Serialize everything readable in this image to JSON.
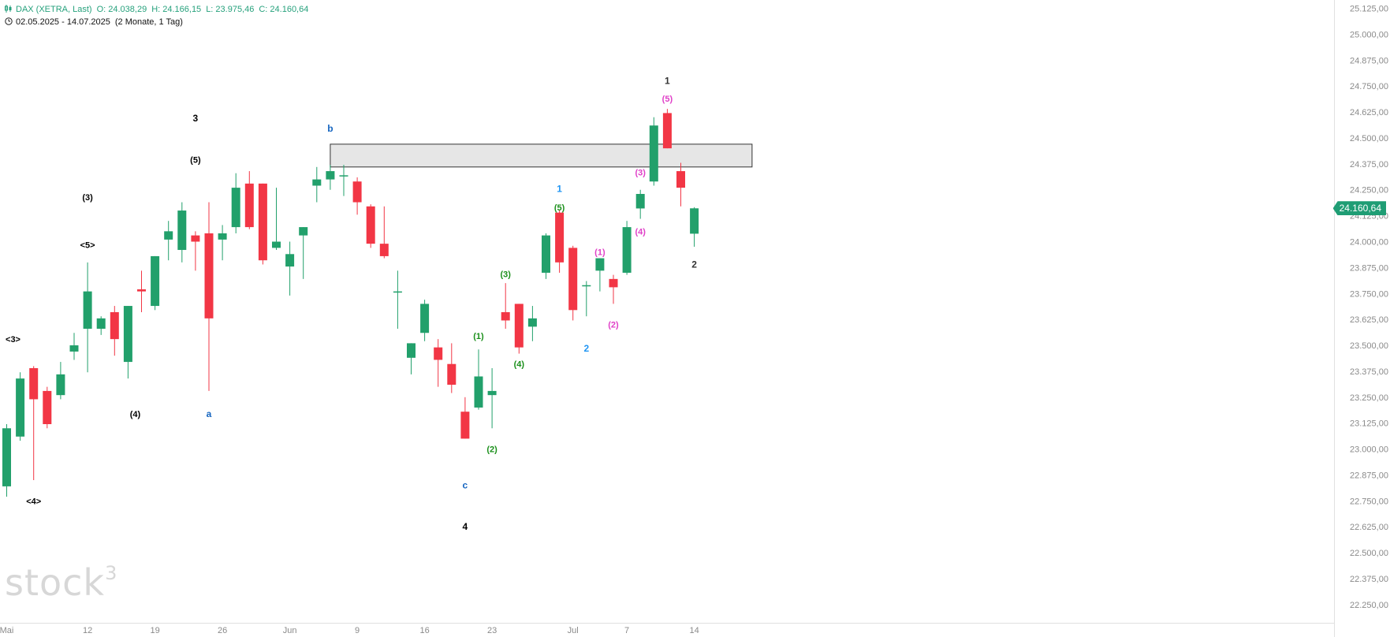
{
  "header": {
    "symbol": "DAX (XETRA, Last)",
    "open": "O: 24.038,29",
    "high": "H: 24.166,15",
    "low": "L: 23.975,46",
    "close": "C: 24.160,64",
    "range": "02.05.2025 - 14.07.2025",
    "period": "(2 Monate, 1 Tag)"
  },
  "watermark": {
    "text": "stock",
    "sup": "3"
  },
  "price_tag": {
    "label": "24.160,64",
    "color": "#1f9d74"
  },
  "colors": {
    "up": "#22a06b",
    "down": "#f23645",
    "axis_text": "#8a8a8a",
    "grid_line": "#e6e6e6"
  },
  "chart_data": {
    "type": "candlestick",
    "y_axis": {
      "ylim": [
        22200,
        25150
      ],
      "ticks": [
        22250,
        22375,
        22500,
        22625,
        22750,
        22875,
        23000,
        23125,
        23250,
        23375,
        23500,
        23625,
        23750,
        23875,
        24000,
        24125,
        24250,
        24375,
        24500,
        24625,
        24750,
        24875,
        25000,
        25125
      ],
      "tick_labels": [
        "22.250,00",
        "22.375,00",
        "22.500,00",
        "22.625,00",
        "22.750,00",
        "22.875,00",
        "23.000,00",
        "23.125,00",
        "23.250,00",
        "23.375,00",
        "23.500,00",
        "23.625,00",
        "23.750,00",
        "23.875,00",
        "24.000,00",
        "24.125,00",
        "24.250,00",
        "24.375,00",
        "24.500,00",
        "24.625,00",
        "24.750,00",
        "24.875,00",
        "25.000,00",
        "25.125,00"
      ]
    },
    "x_axis": {
      "labels": [
        {
          "text": "Mai",
          "date": "2025-05-02"
        },
        {
          "text": "12",
          "date": "2025-05-12"
        },
        {
          "text": "19",
          "date": "2025-05-19"
        },
        {
          "text": "26",
          "date": "2025-05-26"
        },
        {
          "text": "Jun",
          "date": "2025-06-02"
        },
        {
          "text": "9",
          "date": "2025-06-09"
        },
        {
          "text": "16",
          "date": "2025-06-16"
        },
        {
          "text": "23",
          "date": "2025-06-23"
        },
        {
          "text": "Jul",
          "date": "2025-07-01"
        },
        {
          "text": "7",
          "date": "2025-07-07"
        },
        {
          "text": "14",
          "date": "2025-07-14"
        }
      ]
    },
    "candles": [
      {
        "date": "2025-05-02",
        "o": 22820,
        "h": 23120,
        "l": 22770,
        "c": 23100
      },
      {
        "date": "2025-05-05",
        "o": 23060,
        "h": 23370,
        "l": 23040,
        "c": 23340
      },
      {
        "date": "2025-05-06",
        "o": 23390,
        "h": 23400,
        "l": 22850,
        "c": 23240
      },
      {
        "date": "2025-05-07",
        "o": 23280,
        "h": 23300,
        "l": 23100,
        "c": 23120
      },
      {
        "date": "2025-05-08",
        "o": 23260,
        "h": 23420,
        "l": 23240,
        "c": 23360
      },
      {
        "date": "2025-05-09",
        "o": 23470,
        "h": 23560,
        "l": 23430,
        "c": 23500
      },
      {
        "date": "2025-05-12",
        "o": 23580,
        "h": 23900,
        "l": 23370,
        "c": 23760
      },
      {
        "date": "2025-05-13",
        "o": 23580,
        "h": 23640,
        "l": 23550,
        "c": 23630
      },
      {
        "date": "2025-05-14",
        "o": 23660,
        "h": 23690,
        "l": 23450,
        "c": 23530
      },
      {
        "date": "2025-05-15",
        "o": 23420,
        "h": 23690,
        "l": 23340,
        "c": 23690
      },
      {
        "date": "2025-05-16",
        "o": 23770,
        "h": 23860,
        "l": 23660,
        "c": 23760
      },
      {
        "date": "2025-05-19",
        "o": 23690,
        "h": 23930,
        "l": 23670,
        "c": 23930
      },
      {
        "date": "2025-05-20",
        "o": 24010,
        "h": 24100,
        "l": 23910,
        "c": 24050
      },
      {
        "date": "2025-05-21",
        "o": 23960,
        "h": 24190,
        "l": 23900,
        "c": 24150
      },
      {
        "date": "2025-05-22",
        "o": 24030,
        "h": 24050,
        "l": 23860,
        "c": 24000
      },
      {
        "date": "2025-05-23",
        "o": 24040,
        "h": 24190,
        "l": 23280,
        "c": 23630
      },
      {
        "date": "2025-05-26",
        "o": 24010,
        "h": 24080,
        "l": 23910,
        "c": 24040
      },
      {
        "date": "2025-05-27",
        "o": 24070,
        "h": 24330,
        "l": 24040,
        "c": 24260
      },
      {
        "date": "2025-05-28",
        "o": 24280,
        "h": 24340,
        "l": 24060,
        "c": 24070
      },
      {
        "date": "2025-05-29",
        "o": 24280,
        "h": 24280,
        "l": 23890,
        "c": 23910
      },
      {
        "date": "2025-05-30",
        "o": 23970,
        "h": 24260,
        "l": 23960,
        "c": 24000
      },
      {
        "date": "2025-06-02",
        "o": 23880,
        "h": 24000,
        "l": 23740,
        "c": 23940
      },
      {
        "date": "2025-06-03",
        "o": 24030,
        "h": 24070,
        "l": 23820,
        "c": 24070
      },
      {
        "date": "2025-06-04",
        "o": 24270,
        "h": 24360,
        "l": 24190,
        "c": 24300
      },
      {
        "date": "2025-06-05",
        "o": 24300,
        "h": 24370,
        "l": 24250,
        "c": 24340
      },
      {
        "date": "2025-06-06",
        "o": 24320,
        "h": 24370,
        "l": 24220,
        "c": 24320
      },
      {
        "date": "2025-06-09",
        "o": 24290,
        "h": 24310,
        "l": 24130,
        "c": 24190
      },
      {
        "date": "2025-06-10",
        "o": 24170,
        "h": 24180,
        "l": 23970,
        "c": 23990
      },
      {
        "date": "2025-06-11",
        "o": 23990,
        "h": 24170,
        "l": 23920,
        "c": 23930
      },
      {
        "date": "2025-06-12",
        "o": 23760,
        "h": 23860,
        "l": 23580,
        "c": 23760
      },
      {
        "date": "2025-06-13",
        "o": 23440,
        "h": 23510,
        "l": 23360,
        "c": 23510
      },
      {
        "date": "2025-06-16",
        "o": 23560,
        "h": 23720,
        "l": 23520,
        "c": 23700
      },
      {
        "date": "2025-06-17",
        "o": 23490,
        "h": 23530,
        "l": 23300,
        "c": 23430
      },
      {
        "date": "2025-06-18",
        "o": 23410,
        "h": 23510,
        "l": 23270,
        "c": 23310
      },
      {
        "date": "2025-06-19",
        "o": 23180,
        "h": 23250,
        "l": 23050,
        "c": 23050
      },
      {
        "date": "2025-06-20",
        "o": 23200,
        "h": 23480,
        "l": 23190,
        "c": 23350
      },
      {
        "date": "2025-06-23",
        "o": 23260,
        "h": 23390,
        "l": 23100,
        "c": 23280
      },
      {
        "date": "2025-06-24",
        "o": 23660,
        "h": 23800,
        "l": 23580,
        "c": 23620
      },
      {
        "date": "2025-06-25",
        "o": 23700,
        "h": 23700,
        "l": 23460,
        "c": 23490
      },
      {
        "date": "2025-06-26",
        "o": 23590,
        "h": 23690,
        "l": 23520,
        "c": 23630
      },
      {
        "date": "2025-06-27",
        "o": 23850,
        "h": 24040,
        "l": 23820,
        "c": 24030
      },
      {
        "date": "2025-06-30",
        "o": 24140,
        "h": 24150,
        "l": 23850,
        "c": 23900
      },
      {
        "date": "2025-07-01",
        "o": 23970,
        "h": 23980,
        "l": 23620,
        "c": 23670
      },
      {
        "date": "2025-07-02",
        "o": 23790,
        "h": 23810,
        "l": 23640,
        "c": 23790
      },
      {
        "date": "2025-07-03",
        "o": 23860,
        "h": 23920,
        "l": 23760,
        "c": 23920
      },
      {
        "date": "2025-07-04",
        "o": 23820,
        "h": 23840,
        "l": 23700,
        "c": 23780
      },
      {
        "date": "2025-07-07",
        "o": 23850,
        "h": 24100,
        "l": 23840,
        "c": 24070
      },
      {
        "date": "2025-07-08",
        "o": 24160,
        "h": 24250,
        "l": 24110,
        "c": 24230
      },
      {
        "date": "2025-07-09",
        "o": 24290,
        "h": 24600,
        "l": 24270,
        "c": 24560
      },
      {
        "date": "2025-07-10",
        "o": 24620,
        "h": 24640,
        "l": 24450,
        "c": 24450
      },
      {
        "date": "2025-07-11",
        "o": 24340,
        "h": 24380,
        "l": 24170,
        "c": 24260
      },
      {
        "date": "2025-07-14",
        "o": 24038.29,
        "h": 24166.15,
        "l": 23975.46,
        "c": 24160.64
      }
    ],
    "zone": {
      "date_from": "2025-06-05",
      "date_to": "2025-07-20",
      "low": 24360,
      "high": 24470
    },
    "annotations": [
      {
        "text": "<3>",
        "date": "2025-05-02",
        "offset": 1,
        "y": 23530,
        "color": "#000000"
      },
      {
        "text": "<4>",
        "date": "2025-05-06",
        "y": 22750,
        "color": "#000000"
      },
      {
        "text": "(3)",
        "date": "2025-05-12",
        "y": 24215,
        "color": "#000000"
      },
      {
        "text": "<5>",
        "date": "2025-05-12",
        "y": 23985,
        "color": "#000000"
      },
      {
        "text": "(4)",
        "date": "2025-05-16",
        "offset": -1,
        "y": 23170,
        "color": "#000000"
      },
      {
        "text": "3",
        "date": "2025-05-22",
        "y": 24595,
        "color": "#000000"
      },
      {
        "text": "(5)",
        "date": "2025-05-22",
        "y": 24395,
        "color": "#000000"
      },
      {
        "text": "a",
        "date": "2025-05-23",
        "y": 23170,
        "color": "#1565c0"
      },
      {
        "text": "b",
        "date": "2025-06-05",
        "y": 24545,
        "color": "#1565c0"
      },
      {
        "text": "c",
        "date": "2025-06-19",
        "y": 22825,
        "color": "#1565c0"
      },
      {
        "text": "4",
        "date": "2025-06-19",
        "y": 22625,
        "color": "#000000"
      },
      {
        "text": "(1)",
        "date": "2025-06-20",
        "y": 23545,
        "color": "#1a8f1a"
      },
      {
        "text": "(2)",
        "date": "2025-06-23",
        "y": 23000,
        "color": "#1a8f1a"
      },
      {
        "text": "(3)",
        "date": "2025-06-24",
        "y": 23845,
        "color": "#1a8f1a"
      },
      {
        "text": "(4)",
        "date": "2025-06-25",
        "y": 23410,
        "color": "#1a8f1a"
      },
      {
        "text": "(5)",
        "date": "2025-06-30",
        "y": 24165,
        "color": "#1a8f1a"
      },
      {
        "text": "1",
        "date": "2025-06-30",
        "y": 24255,
        "color": "#2196f3"
      },
      {
        "text": "2",
        "date": "2025-07-02",
        "y": 23485,
        "color": "#2196f3"
      },
      {
        "text": "(1)",
        "date": "2025-07-03",
        "y": 23950,
        "color": "#e040c8"
      },
      {
        "text": "(2)",
        "date": "2025-07-04",
        "y": 23600,
        "color": "#e040c8"
      },
      {
        "text": "(3)",
        "date": "2025-07-08",
        "y": 24335,
        "color": "#e040c8"
      },
      {
        "text": "(4)",
        "date": "2025-07-08",
        "y": 24050,
        "color": "#e040c8"
      },
      {
        "text": "1",
        "date": "2025-07-10",
        "y": 24775,
        "color": "#333333"
      },
      {
        "text": "(5)",
        "date": "2025-07-10",
        "y": 24690,
        "color": "#e040c8"
      },
      {
        "text": "2",
        "date": "2025-07-14",
        "y": 23890,
        "color": "#333333"
      }
    ]
  }
}
